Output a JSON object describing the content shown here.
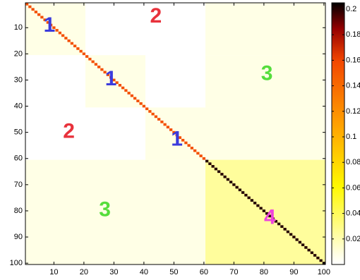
{
  "chart_data": {
    "type": "heatmap",
    "title": "",
    "xlabel": "",
    "ylabel": "",
    "matrix_size": 100,
    "xlim": [
      0.5,
      100.5
    ],
    "ylim": [
      0.5,
      100.5
    ],
    "y_direction": "reversed",
    "x_ticks": [
      10,
      20,
      30,
      40,
      50,
      60,
      70,
      80,
      90,
      100
    ],
    "y_ticks": [
      10,
      20,
      30,
      40,
      50,
      60,
      70,
      80,
      90,
      100
    ],
    "block_edges": [
      0,
      20,
      40,
      60,
      100
    ],
    "block_matrix": [
      [
        1,
        2,
        2,
        3
      ],
      [
        2,
        1,
        2,
        3
      ],
      [
        2,
        2,
        1,
        3
      ],
      [
        3,
        3,
        3,
        4
      ]
    ],
    "region_values": {
      "1": 0.0075,
      "2": 0,
      "3": 0.0075,
      "4": 0.025
    },
    "diagonal_values": [
      {
        "from": 1,
        "to": 60,
        "value": 0.155
      },
      {
        "from": 61,
        "to": 100,
        "value": 0.2
      }
    ],
    "annotations": [
      {
        "text": "1",
        "x": 8.5,
        "y": 9,
        "color": "#3b3bdc"
      },
      {
        "text": "2",
        "x": 44,
        "y": 5.5,
        "color": "#e8323c"
      },
      {
        "text": "1",
        "x": 29,
        "y": 29.5,
        "color": "#3b3bdc"
      },
      {
        "text": "3",
        "x": 81,
        "y": 27.5,
        "color": "#55dd3c"
      },
      {
        "text": "2",
        "x": 15,
        "y": 49.5,
        "color": "#e8323c"
      },
      {
        "text": "1",
        "x": 51,
        "y": 52.5,
        "color": "#3b3bdc"
      },
      {
        "text": "3",
        "x": 27,
        "y": 79.5,
        "color": "#55dd3c"
      },
      {
        "text": "4",
        "x": 82,
        "y": 82.5,
        "color": "#ee44dd"
      }
    ],
    "colorbar": {
      "colormap": "hot-reversed",
      "clim": [
        0,
        0.205
      ],
      "ticks": [
        0.02,
        0.04,
        0.06,
        0.08,
        0.1,
        0.12,
        0.14,
        0.16,
        0.18,
        0.2
      ],
      "tick_labels": [
        "0.02",
        "0.04",
        "0.06",
        "0.08",
        "0.1",
        "0.12",
        "0.14",
        "0.16",
        "0.18",
        "0.2"
      ]
    }
  }
}
